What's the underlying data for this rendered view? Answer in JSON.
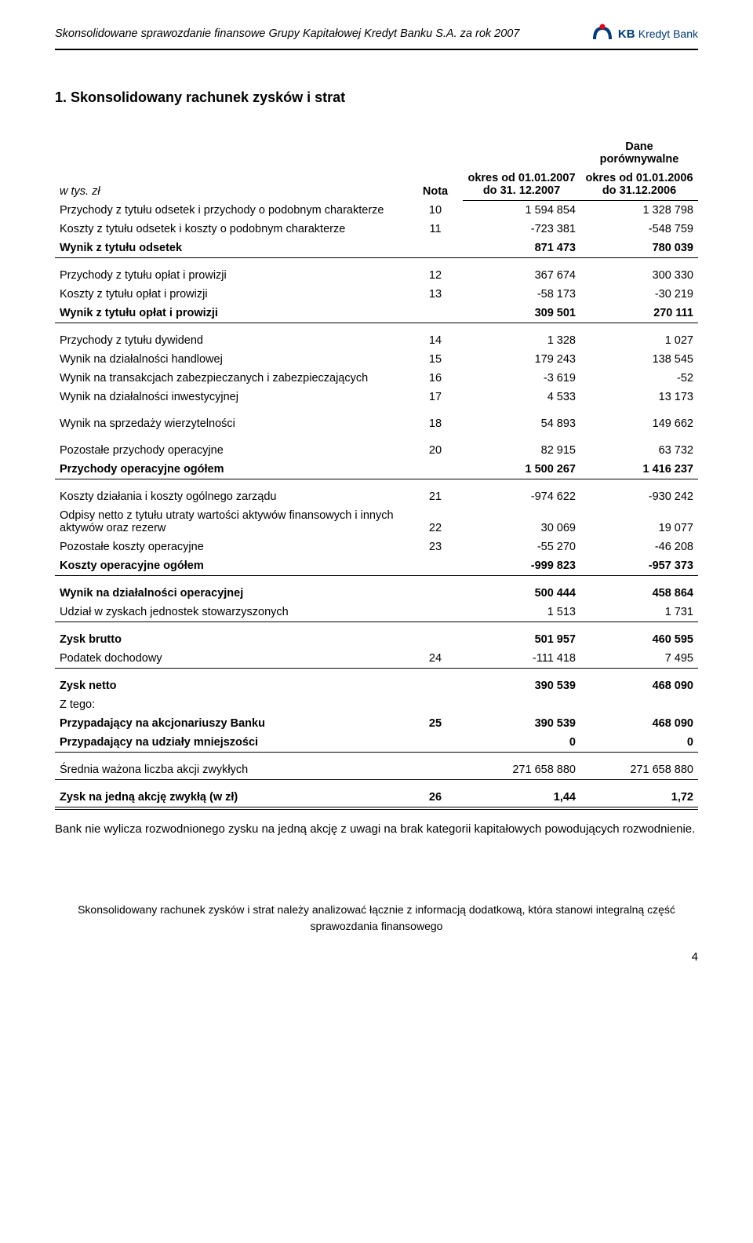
{
  "header": {
    "title": "Skonsolidowane sprawozdanie finansowe Grupy Kapitałowej Kredyt Banku S.A. za rok 2007",
    "logo_kb": "KB",
    "logo_brand": "Kredyt Bank"
  },
  "section_title": "1.   Skonsolidowany rachunek zysków i strat",
  "table_head": {
    "unit_label": "w tys. zł",
    "nota": "Nota",
    "compare_title": "Dane porównywalne",
    "col1_line1": "okres od 01.01.2007",
    "col1_line2": "do 31. 12.2007",
    "col2_line1": "okres od 01.01.2006",
    "col2_line2": "do 31.12.2006"
  },
  "rows": [
    {
      "label": "Przychody z tytułu odsetek i przychody o podobnym charakterze",
      "note": "10",
      "v1": "1 594 854",
      "v2": "1 328 798",
      "bold": false,
      "cls": ""
    },
    {
      "label": "Koszty z tytułu odsetek i koszty o podobnym charakterze",
      "note": "11",
      "v1": "-723 381",
      "v2": "-548 759",
      "bold": false,
      "cls": ""
    },
    {
      "label": "Wynik z tytułu odsetek",
      "note": "",
      "v1": "871 473",
      "v2": "780 039",
      "bold": true,
      "cls": "sep"
    },
    {
      "label": "Przychody z tytułu opłat i prowizji",
      "note": "12",
      "v1": "367 674",
      "v2": "300 330",
      "bold": false,
      "cls": "blocktop"
    },
    {
      "label": "Koszty z tytułu opłat i prowizji",
      "note": "13",
      "v1": "-58 173",
      "v2": "-30 219",
      "bold": false,
      "cls": ""
    },
    {
      "label": "Wynik z tytułu opłat i prowizji",
      "note": "",
      "v1": "309 501",
      "v2": "270 111",
      "bold": true,
      "cls": "sep"
    },
    {
      "label": "Przychody z tytułu dywidend",
      "note": "14",
      "v1": "1 328",
      "v2": "1 027",
      "bold": false,
      "cls": "blocktop"
    },
    {
      "label": "Wynik na działalności handlowej",
      "note": "15",
      "v1": "179 243",
      "v2": "138 545",
      "bold": false,
      "cls": ""
    },
    {
      "label": "Wynik na transakcjach zabezpieczanych i zabezpieczających",
      "note": "16",
      "v1": "-3 619",
      "v2": "-52",
      "bold": false,
      "cls": ""
    },
    {
      "label": "Wynik na działalności inwestycyjnej",
      "note": "17",
      "v1": "4 533",
      "v2": "13 173",
      "bold": false,
      "cls": ""
    },
    {
      "label": "Wynik na sprzedaży wierzytelności",
      "note": "18",
      "v1": "54 893",
      "v2": "149 662",
      "bold": false,
      "cls": "blocktop"
    },
    {
      "label": "Pozostałe przychody operacyjne",
      "note": "20",
      "v1": "82 915",
      "v2": "63 732",
      "bold": false,
      "cls": "blocktop"
    },
    {
      "label": "Przychody operacyjne ogółem",
      "note": "",
      "v1": "1 500 267",
      "v2": "1 416 237",
      "bold": true,
      "cls": "sep"
    },
    {
      "label": "Koszty działania i koszty ogólnego zarządu",
      "note": "21",
      "v1": "-974 622",
      "v2": "-930 242",
      "bold": false,
      "cls": "blocktop"
    },
    {
      "label": "Odpisy netto z tytułu utraty wartości aktywów finansowych i innych aktywów oraz rezerw",
      "note": "22",
      "v1": "30 069",
      "v2": "19 077",
      "bold": false,
      "cls": ""
    },
    {
      "label": "Pozostałe koszty operacyjne",
      "note": "23",
      "v1": "-55 270",
      "v2": "-46 208",
      "bold": false,
      "cls": ""
    },
    {
      "label": "Koszty operacyjne ogółem",
      "note": "",
      "v1": "-999 823",
      "v2": "-957 373",
      "bold": true,
      "cls": "sep"
    },
    {
      "label": "Wynik na działalności operacyjnej",
      "note": "",
      "v1": "500 444",
      "v2": "458 864",
      "bold": true,
      "cls": "blocktop"
    },
    {
      "label": "Udział w zyskach jednostek stowarzyszonych",
      "note": "",
      "v1": "1 513",
      "v2": "1 731",
      "bold": false,
      "cls": "sep"
    },
    {
      "label": "Zysk brutto",
      "note": "",
      "v1": "501 957",
      "v2": "460 595",
      "bold": true,
      "cls": "blocktop"
    },
    {
      "label": "Podatek dochodowy",
      "note": "24",
      "v1": "-111 418",
      "v2": "7 495",
      "bold": false,
      "cls": "sep"
    },
    {
      "label": "Zysk netto",
      "note": "",
      "v1": "390 539",
      "v2": "468 090",
      "bold": true,
      "cls": "blocktop"
    },
    {
      "label": "Z tego:",
      "note": "",
      "v1": "",
      "v2": "",
      "bold": false,
      "cls": ""
    },
    {
      "label": "Przypadający na akcjonariuszy Banku",
      "note": "25",
      "v1": "390 539",
      "v2": "468 090",
      "bold": true,
      "cls": ""
    },
    {
      "label": "Przypadający na udziały mniejszości",
      "note": "",
      "v1": "0",
      "v2": "0",
      "bold": true,
      "cls": "sep"
    },
    {
      "label": "Średnia ważona liczba akcji zwykłych",
      "note": "",
      "v1": "271 658 880",
      "v2": "271 658 880",
      "bold": false,
      "cls": "blocktop sep"
    },
    {
      "label": "Zysk na jedną akcję zwykłą (w zł)",
      "note": "26",
      "v1": "1,44",
      "v2": "1,72",
      "bold": true,
      "cls": "blocktop dblsep"
    }
  ],
  "body_text": "Bank nie wylicza rozwodnionego zysku na jedną akcję z uwagi na brak kategorii kapitałowych powodujących rozwodnienie.",
  "footer_note": "Skonsolidowany rachunek zysków i strat należy analizować łącznie z informacją dodatkową, która stanowi integralną część sprawozdania finansowego",
  "page_number": "4"
}
